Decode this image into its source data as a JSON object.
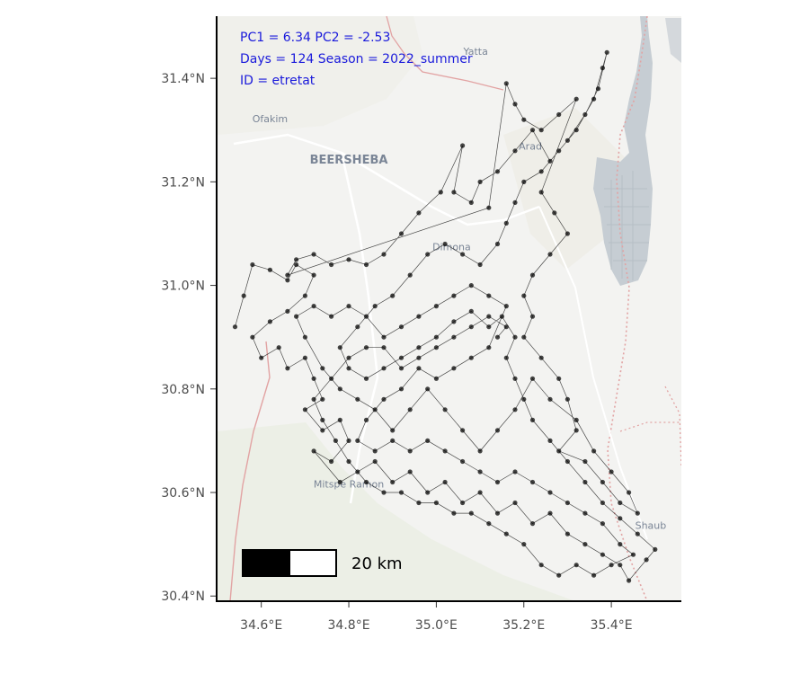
{
  "annotation": {
    "line1": "PC1 = 6.34  PC2 = -2.53",
    "line2": "Days = 124  Season = 2022_summer",
    "line3": "ID = etretat"
  },
  "basemap": {
    "places": [
      {
        "name": "Yatta",
        "lon": 35.09,
        "lat": 31.445
      },
      {
        "name": "Ofakim",
        "lon": 34.62,
        "lat": 31.315
      },
      {
        "name": "BEERSHEBA",
        "lon": 34.8,
        "lat": 31.235
      },
      {
        "name": "Arad",
        "lon": 35.215,
        "lat": 31.262
      },
      {
        "name": "Dimona",
        "lon": 35.035,
        "lat": 31.068
      },
      {
        "name": "Mitspe Ramon",
        "lon": 34.8,
        "lat": 30.61
      },
      {
        "name": "Shaub",
        "lon": 35.49,
        "lat": 30.53
      }
    ],
    "colors": {
      "land": "#f3f3f1",
      "water": "#c6cdd3",
      "border": "#e2a3a3",
      "road": "#ffffff"
    }
  },
  "scalebar": {
    "label": "20 km"
  },
  "chart_data": {
    "type": "scatter",
    "title": "",
    "xlabel": "",
    "ylabel": "",
    "xlim": [
      34.5,
      35.56
    ],
    "ylim": [
      30.39,
      31.52
    ],
    "x_ticks": [
      {
        "value": 34.6,
        "label": "34.6°E"
      },
      {
        "value": 34.8,
        "label": "34.8°E"
      },
      {
        "value": 35.0,
        "label": "35.0°E"
      },
      {
        "value": 35.2,
        "label": "35.2°E"
      },
      {
        "value": 35.4,
        "label": "35.4°E"
      }
    ],
    "y_ticks": [
      {
        "value": 30.4,
        "label": "30.4°N"
      },
      {
        "value": 30.6,
        "label": "30.6°N"
      },
      {
        "value": 30.8,
        "label": "30.8°N"
      },
      {
        "value": 31.0,
        "label": "31.0°N"
      },
      {
        "value": 31.2,
        "label": "31.2°N"
      },
      {
        "value": 31.4,
        "label": "31.4°N"
      }
    ],
    "point_color": "#000000",
    "line_color": "#000000",
    "series": [
      {
        "values": [
          [
            34.54,
            30.92
          ],
          [
            34.56,
            30.98
          ],
          [
            34.58,
            31.04
          ],
          [
            34.62,
            31.03
          ],
          [
            34.66,
            31.01
          ],
          [
            34.68,
            31.04
          ],
          [
            34.72,
            31.02
          ],
          [
            34.7,
            30.98
          ],
          [
            34.66,
            30.95
          ],
          [
            34.62,
            30.93
          ],
          [
            34.58,
            30.9
          ],
          [
            34.6,
            30.86
          ],
          [
            34.64,
            30.88
          ],
          [
            34.66,
            30.84
          ],
          [
            34.7,
            30.86
          ],
          [
            34.72,
            30.82
          ],
          [
            34.74,
            30.78
          ],
          [
            34.7,
            30.76
          ],
          [
            34.74,
            30.72
          ],
          [
            34.78,
            30.74
          ],
          [
            34.8,
            30.7
          ],
          [
            34.76,
            30.66
          ],
          [
            34.72,
            30.68
          ],
          [
            34.78,
            30.62
          ],
          [
            34.82,
            30.64
          ],
          [
            34.86,
            30.66
          ],
          [
            34.9,
            30.62
          ],
          [
            34.94,
            30.64
          ],
          [
            34.98,
            30.6
          ],
          [
            35.02,
            30.62
          ],
          [
            35.06,
            30.58
          ],
          [
            35.1,
            30.6
          ],
          [
            35.14,
            30.56
          ],
          [
            35.18,
            30.58
          ],
          [
            35.22,
            30.54
          ],
          [
            35.26,
            30.56
          ],
          [
            35.3,
            30.52
          ],
          [
            35.34,
            30.5
          ],
          [
            35.38,
            30.48
          ],
          [
            35.42,
            30.46
          ],
          [
            35.44,
            30.43
          ],
          [
            35.48,
            30.47
          ],
          [
            35.5,
            30.49
          ],
          [
            35.46,
            30.52
          ],
          [
            35.42,
            30.55
          ],
          [
            35.38,
            30.58
          ],
          [
            35.34,
            30.62
          ],
          [
            35.3,
            30.66
          ],
          [
            35.26,
            30.7
          ],
          [
            35.22,
            30.74
          ],
          [
            35.2,
            30.78
          ],
          [
            35.18,
            30.82
          ],
          [
            35.16,
            30.86
          ],
          [
            35.18,
            30.9
          ],
          [
            35.15,
            30.94
          ],
          [
            35.12,
            30.92
          ],
          [
            35.08,
            30.95
          ],
          [
            35.04,
            30.93
          ],
          [
            35.0,
            30.9
          ],
          [
            34.96,
            30.88
          ],
          [
            34.92,
            30.86
          ],
          [
            34.88,
            30.84
          ],
          [
            34.84,
            30.82
          ],
          [
            34.8,
            30.84
          ],
          [
            34.78,
            30.88
          ],
          [
            34.82,
            30.92
          ],
          [
            34.86,
            30.96
          ],
          [
            34.9,
            30.98
          ],
          [
            34.94,
            31.02
          ],
          [
            34.98,
            31.06
          ],
          [
            35.02,
            31.08
          ],
          [
            35.06,
            31.06
          ],
          [
            35.1,
            31.04
          ],
          [
            35.14,
            31.08
          ],
          [
            35.16,
            31.12
          ],
          [
            35.18,
            31.16
          ],
          [
            35.2,
            31.2
          ],
          [
            35.24,
            31.22
          ],
          [
            35.28,
            31.26
          ],
          [
            35.32,
            31.3
          ],
          [
            35.36,
            31.36
          ],
          [
            35.38,
            31.42
          ],
          [
            35.39,
            31.45
          ],
          [
            35.37,
            31.38
          ],
          [
            35.34,
            31.33
          ],
          [
            35.3,
            31.28
          ],
          [
            35.26,
            31.24
          ],
          [
            35.22,
            31.3
          ],
          [
            35.18,
            31.26
          ],
          [
            35.14,
            31.22
          ],
          [
            35.1,
            31.2
          ],
          [
            35.08,
            31.16
          ],
          [
            35.04,
            31.18
          ],
          [
            35.06,
            31.27
          ],
          [
            35.01,
            31.18
          ],
          [
            34.96,
            31.14
          ],
          [
            34.92,
            31.1
          ],
          [
            34.88,
            31.06
          ],
          [
            34.84,
            31.04
          ],
          [
            34.8,
            31.05
          ],
          [
            34.76,
            31.04
          ],
          [
            34.72,
            31.06
          ],
          [
            34.68,
            31.05
          ],
          [
            34.66,
            31.02
          ],
          [
            35.12,
            31.15
          ],
          [
            35.16,
            31.39
          ],
          [
            35.18,
            31.35
          ],
          [
            35.2,
            31.32
          ],
          [
            35.24,
            31.3
          ],
          [
            35.28,
            31.33
          ],
          [
            35.32,
            31.36
          ],
          [
            35.24,
            31.18
          ],
          [
            35.27,
            31.14
          ],
          [
            35.3,
            31.1
          ],
          [
            35.26,
            31.06
          ],
          [
            35.22,
            31.02
          ],
          [
            35.2,
            30.98
          ],
          [
            35.22,
            30.94
          ],
          [
            35.2,
            30.9
          ],
          [
            35.24,
            30.86
          ],
          [
            35.28,
            30.82
          ],
          [
            35.3,
            30.78
          ],
          [
            35.32,
            30.72
          ],
          [
            35.28,
            30.68
          ],
          [
            35.34,
            30.66
          ],
          [
            35.38,
            30.62
          ],
          [
            35.42,
            30.58
          ],
          [
            35.46,
            30.56
          ],
          [
            35.44,
            30.6
          ],
          [
            35.4,
            30.64
          ],
          [
            35.36,
            30.68
          ],
          [
            35.32,
            30.74
          ],
          [
            35.26,
            30.78
          ],
          [
            35.22,
            30.82
          ],
          [
            35.18,
            30.76
          ],
          [
            35.14,
            30.72
          ],
          [
            35.1,
            30.68
          ],
          [
            35.06,
            30.72
          ],
          [
            35.02,
            30.76
          ],
          [
            34.98,
            30.8
          ],
          [
            34.94,
            30.76
          ],
          [
            34.9,
            30.72
          ],
          [
            34.86,
            30.76
          ],
          [
            34.82,
            30.78
          ],
          [
            34.78,
            30.8
          ],
          [
            34.74,
            30.84
          ],
          [
            34.7,
            30.9
          ],
          [
            34.68,
            30.94
          ],
          [
            34.72,
            30.96
          ],
          [
            34.76,
            30.94
          ],
          [
            34.8,
            30.96
          ],
          [
            34.84,
            30.94
          ],
          [
            34.88,
            30.9
          ],
          [
            34.92,
            30.92
          ],
          [
            34.96,
            30.94
          ],
          [
            35.0,
            30.96
          ],
          [
            35.04,
            30.98
          ],
          [
            35.08,
            31.0
          ],
          [
            35.12,
            30.98
          ],
          [
            35.16,
            30.96
          ],
          [
            35.12,
            30.88
          ],
          [
            35.08,
            30.86
          ],
          [
            35.04,
            30.84
          ],
          [
            35.0,
            30.82
          ],
          [
            34.96,
            30.84
          ],
          [
            34.92,
            30.8
          ],
          [
            34.88,
            30.78
          ],
          [
            34.84,
            30.74
          ],
          [
            34.82,
            30.7
          ],
          [
            34.86,
            30.68
          ],
          [
            34.9,
            30.7
          ],
          [
            34.94,
            30.68
          ],
          [
            34.98,
            30.7
          ],
          [
            35.02,
            30.68
          ],
          [
            35.06,
            30.66
          ],
          [
            35.1,
            30.64
          ],
          [
            35.14,
            30.62
          ],
          [
            35.18,
            30.64
          ],
          [
            35.22,
            30.62
          ],
          [
            35.26,
            30.6
          ],
          [
            35.3,
            30.58
          ],
          [
            35.34,
            30.56
          ],
          [
            35.38,
            30.54
          ],
          [
            35.42,
            30.5
          ],
          [
            35.45,
            30.48
          ],
          [
            35.4,
            30.46
          ],
          [
            35.36,
            30.44
          ],
          [
            35.32,
            30.46
          ],
          [
            35.28,
            30.44
          ],
          [
            35.24,
            30.46
          ],
          [
            35.2,
            30.5
          ],
          [
            35.16,
            30.52
          ],
          [
            35.12,
            30.54
          ],
          [
            35.08,
            30.56
          ],
          [
            35.04,
            30.56
          ],
          [
            35.0,
            30.58
          ],
          [
            34.96,
            30.58
          ],
          [
            34.92,
            30.6
          ],
          [
            34.88,
            30.6
          ],
          [
            34.84,
            30.62
          ],
          [
            34.8,
            30.66
          ],
          [
            34.77,
            30.7
          ],
          [
            34.74,
            30.74
          ],
          [
            34.72,
            30.78
          ],
          [
            34.76,
            30.82
          ],
          [
            34.8,
            30.86
          ],
          [
            34.84,
            30.88
          ],
          [
            34.88,
            30.88
          ],
          [
            34.92,
            30.84
          ],
          [
            34.96,
            30.86
          ],
          [
            35.0,
            30.88
          ],
          [
            35.04,
            30.9
          ],
          [
            35.08,
            30.92
          ],
          [
            35.12,
            30.94
          ],
          [
            35.16,
            30.92
          ],
          [
            35.14,
            30.9
          ]
        ]
      }
    ]
  }
}
